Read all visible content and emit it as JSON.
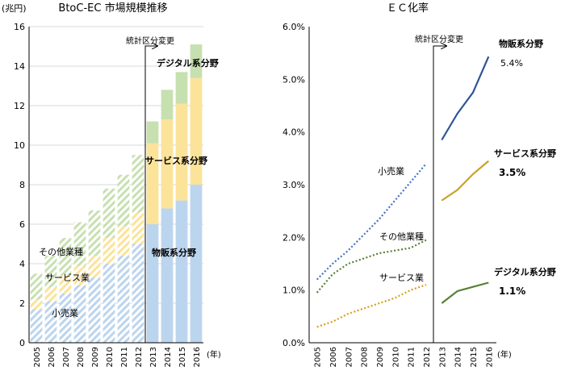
{
  "chart_data": [
    {
      "type": "bar",
      "stacked": true,
      "title": "BtoC-EC 市場規模推移",
      "unit_label": "(兆円)",
      "x_unit_label": "(年)",
      "ylim": [
        0,
        16
      ],
      "yticks": [
        0,
        2,
        4,
        6,
        8,
        10,
        12,
        14,
        16
      ],
      "grid": true,
      "categories": [
        "2005",
        "2006",
        "2007",
        "2008",
        "2009",
        "2010",
        "2011",
        "2012",
        "2013",
        "2014",
        "2015",
        "2016"
      ],
      "annotation": "統計区分変更",
      "series": [
        {
          "name": "小売業",
          "label_period": "2005-2012",
          "values": [
            1.7,
            2.1,
            2.5,
            2.9,
            3.3,
            4.0,
            4.4,
            5.0,
            null,
            null,
            null,
            null
          ]
        },
        {
          "name": "サービス業",
          "label_period": "2005-2012",
          "values": [
            0.5,
            0.7,
            0.9,
            1.0,
            1.1,
            1.3,
            1.5,
            1.6,
            null,
            null,
            null,
            null
          ]
        },
        {
          "name": "その他業種",
          "label_period": "2005-2012",
          "values": [
            1.3,
            1.6,
            1.9,
            2.2,
            2.3,
            2.5,
            2.6,
            2.9,
            null,
            null,
            null,
            null
          ]
        },
        {
          "name": "物販系分野",
          "label_period": "2013-2016",
          "values": [
            null,
            null,
            null,
            null,
            null,
            null,
            null,
            null,
            6.0,
            6.8,
            7.2,
            8.0
          ]
        },
        {
          "name": "サービス系分野",
          "label_period": "2013-2016",
          "values": [
            null,
            null,
            null,
            null,
            null,
            null,
            null,
            null,
            4.1,
            4.5,
            4.9,
            5.4
          ]
        },
        {
          "name": "デジタル系分野",
          "label_period": "2013-2016",
          "values": [
            null,
            null,
            null,
            null,
            null,
            null,
            null,
            null,
            1.1,
            1.5,
            1.6,
            1.7
          ]
        }
      ],
      "colors": {
        "retail": "#bcd5ee",
        "service": "#fbe39a",
        "other": "#c7e0b0",
        "grid": "#d9d9d9"
      }
    },
    {
      "type": "line",
      "title": "ＥＣ化率",
      "x_unit_label": "(年)",
      "ylim": [
        0,
        6
      ],
      "yticks": [
        "0.0%",
        "1.0%",
        "2.0%",
        "3.0%",
        "4.0%",
        "5.0%",
        "6.0%"
      ],
      "categories": [
        "2005",
        "2006",
        "2007",
        "2008",
        "2009",
        "2010",
        "2011",
        "2012",
        "2013",
        "2014",
        "2015",
        "2016"
      ],
      "annotation": "統計区分変更",
      "series": [
        {
          "name": "小売業",
          "style": "dotted",
          "color": "#4472c4",
          "values": [
            1.2,
            1.5,
            1.75,
            2.05,
            2.35,
            2.7,
            3.05,
            3.4,
            null,
            null,
            null,
            null
          ]
        },
        {
          "name": "その他業種",
          "style": "dotted",
          "color": "#548235",
          "values": [
            0.95,
            1.3,
            1.5,
            1.6,
            1.7,
            1.75,
            1.8,
            1.95,
            null,
            null,
            null,
            null
          ]
        },
        {
          "name": "サービス業",
          "style": "dotted",
          "color": "#d4a017",
          "values": [
            0.3,
            0.4,
            0.55,
            0.65,
            0.75,
            0.85,
            1.0,
            1.1,
            null,
            null,
            null,
            null
          ]
        },
        {
          "name": "物販系分野",
          "style": "solid",
          "color": "#2f5597",
          "end_label": "5.4%",
          "values": [
            null,
            null,
            null,
            null,
            null,
            null,
            null,
            null,
            3.85,
            4.35,
            4.75,
            5.43
          ]
        },
        {
          "name": "サービス系分野",
          "style": "solid",
          "color": "#c9a227",
          "end_label": "3.5%",
          "values": [
            null,
            null,
            null,
            null,
            null,
            null,
            null,
            null,
            2.7,
            2.9,
            3.2,
            3.45
          ]
        },
        {
          "name": "デジタル系分野",
          "style": "solid",
          "color": "#548235",
          "end_label": "1.1%",
          "values": [
            null,
            null,
            null,
            null,
            null,
            null,
            null,
            null,
            0.75,
            0.98,
            1.06,
            1.14
          ]
        }
      ]
    }
  ]
}
